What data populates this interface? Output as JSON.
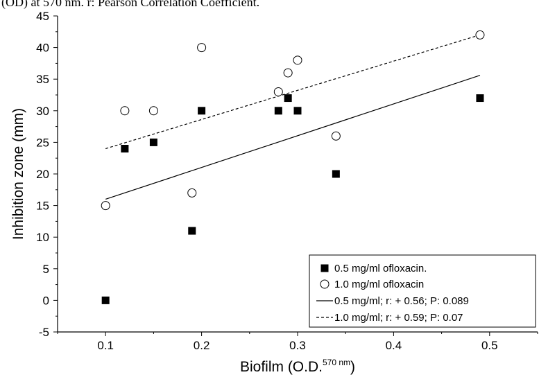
{
  "caption": "(OD) at 570 nm. r: Pearson Correlation Coefficient.",
  "chart_data": {
    "type": "scatter",
    "xlabel": "Biofilm (O.D.",
    "xlabel_superscript": "570 nm",
    "xlabel_suffix": ")",
    "ylabel": "Inhibition zone (mm)",
    "xlim": [
      0.05,
      0.55
    ],
    "ylim": [
      -5,
      45
    ],
    "x_ticks": [
      "0.1",
      "0.2",
      "0.3",
      "0.4",
      "0.5"
    ],
    "y_ticks": [
      "-5",
      "0",
      "5",
      "10",
      "15",
      "20",
      "25",
      "30",
      "35",
      "40",
      "45"
    ],
    "grid": false,
    "legend_position": "bottom-right",
    "series": [
      {
        "name": "0.5 mg/ml ofloxacin.",
        "marker": "filled-square",
        "color": "#000000",
        "x": [
          0.1,
          0.12,
          0.15,
          0.19,
          0.2,
          0.28,
          0.29,
          0.3,
          0.34,
          0.49
        ],
        "y": [
          0,
          24,
          25,
          11,
          30,
          30,
          32,
          30,
          20,
          32
        ]
      },
      {
        "name": "1.0 mg/ml ofloxacin",
        "marker": "open-circle",
        "color": "#000000",
        "x": [
          0.1,
          0.12,
          0.15,
          0.19,
          0.2,
          0.28,
          0.29,
          0.3,
          0.34,
          0.49
        ],
        "y": [
          15,
          30,
          30,
          17,
          40,
          33,
          36,
          38,
          26,
          42
        ]
      }
    ],
    "fits": [
      {
        "name": "0.5 mg/ml; r: + 0.56; P: 0.089",
        "style": "solid",
        "x": [
          0.1,
          0.49
        ],
        "y": [
          16.0,
          35.6
        ]
      },
      {
        "name": "1.0 mg/ml; r: + 0.59; P: 0.07",
        "style": "dashed",
        "x": [
          0.1,
          0.49
        ],
        "y": [
          24.0,
          42.0
        ]
      }
    ]
  }
}
